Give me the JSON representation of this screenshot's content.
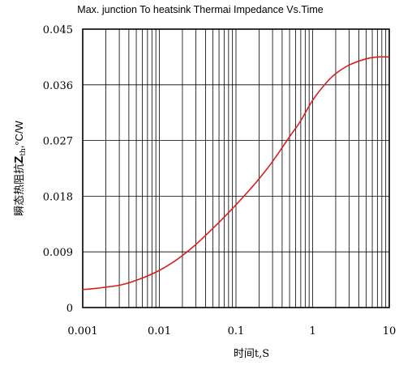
{
  "chart_data": {
    "type": "line",
    "title": "Max. junction To heatsink Thermai Impedance Vs.Time",
    "xlabel": "时间t,S",
    "ylabel_cn": "瞬态热阻抗",
    "ylabel_symbol": "Z",
    "ylabel_sub": "th",
    "ylabel_unit": ",°C/W",
    "x_scale": "log",
    "xlim": [
      0.001,
      10
    ],
    "ylim": [
      0,
      0.045
    ],
    "x_ticks": [
      {
        "value": 0.001,
        "label": "0.001"
      },
      {
        "value": 0.01,
        "label": "0.01"
      },
      {
        "value": 0.1,
        "label": "0.1"
      },
      {
        "value": 1,
        "label": "1"
      },
      {
        "value": 10,
        "label": "10"
      }
    ],
    "y_ticks": [
      {
        "value": 0,
        "label": "0"
      },
      {
        "value": 0.009,
        "label": "0.009"
      },
      {
        "value": 0.018,
        "label": "0.018"
      },
      {
        "value": 0.027,
        "label": "0.027"
      },
      {
        "value": 0.036,
        "label": "0.036"
      },
      {
        "value": 0.045,
        "label": "0.045"
      }
    ],
    "grid": true,
    "series": [
      {
        "color": "#d81e1e",
        "x": [
          0.001,
          0.0015,
          0.002,
          0.003,
          0.004,
          0.005,
          0.007,
          0.01,
          0.015,
          0.02,
          0.03,
          0.05,
          0.07,
          0.1,
          0.15,
          0.2,
          0.3,
          0.5,
          0.7,
          1,
          1.5,
          2,
          3,
          5,
          7,
          10
        ],
        "y": [
          0.0029,
          0.0031,
          0.0033,
          0.0036,
          0.004,
          0.0044,
          0.0051,
          0.006,
          0.0073,
          0.0084,
          0.0102,
          0.0128,
          0.0146,
          0.0166,
          0.019,
          0.0208,
          0.0236,
          0.0276,
          0.0302,
          0.0335,
          0.0363,
          0.0378,
          0.0392,
          0.0402,
          0.0405,
          0.0405
        ]
      }
    ]
  }
}
